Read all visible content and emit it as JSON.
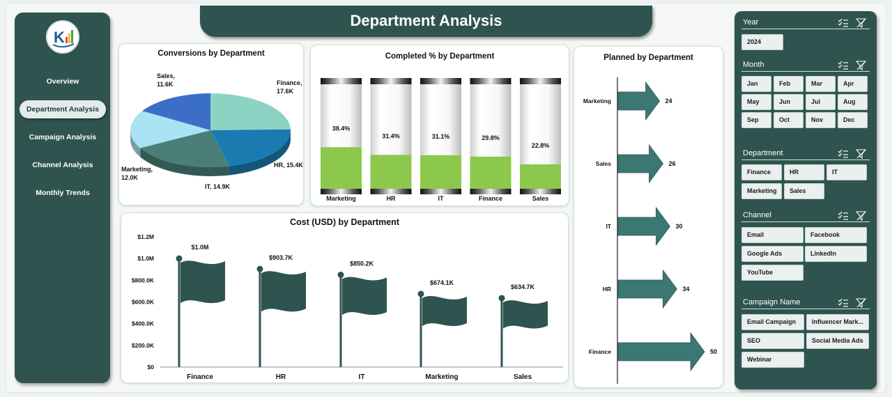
{
  "header": {
    "title": "Department Analysis"
  },
  "sidebar": {
    "items": [
      {
        "label": "Overview",
        "active": false
      },
      {
        "label": "Department Analysis",
        "active": true
      },
      {
        "label": "Campaign Analysis",
        "active": false
      },
      {
        "label": "Channel Analysis",
        "active": false
      },
      {
        "label": "Monthly Trends",
        "active": false
      }
    ]
  },
  "colors": {
    "panel": "#2f5450",
    "accent_green": "#8cc84b",
    "pie_blue": "#1979b4",
    "flag": "#2f5450",
    "arrow": "#3d7773"
  },
  "slicers": {
    "year": {
      "label": "Year",
      "options": [
        "2024"
      ]
    },
    "month": {
      "label": "Month",
      "options": [
        "Jan",
        "Feb",
        "Mar",
        "Apr",
        "May",
        "Jun",
        "Jul",
        "Aug",
        "Sep",
        "Oct",
        "Nov",
        "Dec"
      ]
    },
    "department": {
      "label": "Department",
      "options": [
        "Finance",
        "HR",
        "IT",
        "Marketing",
        "Sales"
      ]
    },
    "channel": {
      "label": "Channel",
      "options": [
        "Email",
        "Facebook",
        "Google Ads",
        "LinkedIn",
        "YouTube"
      ]
    },
    "campaign": {
      "label": "Campaign Name",
      "options": [
        "Email Campaign",
        "Influencer Mark...",
        "SEO",
        "Social Media Ads",
        "Webinar"
      ]
    },
    "icons": [
      "multi-select-icon",
      "clear-filter-icon"
    ]
  },
  "chart_data": [
    {
      "type": "pie",
      "title": "Conversions by Department",
      "categories": [
        "Finance",
        "HR",
        "IT",
        "Marketing",
        "Sales"
      ],
      "values": [
        17.6,
        15.4,
        14.9,
        12.0,
        11.6
      ],
      "labels": [
        "Finance,\n17.6K",
        "HR, 15.4K",
        "IT, 14.9K",
        "Marketing,\n12.0K",
        "Sales,\n11.6K"
      ],
      "colors": [
        "#8dd3c4",
        "#1a7bb0",
        "#4a7f79",
        "#a9e3f3",
        "#3b6fc7"
      ]
    },
    {
      "type": "bar",
      "title": "Completed % by Department",
      "categories": [
        "Marketing",
        "HR",
        "IT",
        "Finance",
        "Sales"
      ],
      "values": [
        38.4,
        31.4,
        31.1,
        29.8,
        22.8
      ],
      "labels": [
        "38.4%",
        "31.4%",
        "31.1%",
        "29.8%",
        "22.8%"
      ],
      "ylim": [
        0,
        100
      ]
    },
    {
      "type": "bar",
      "title": "Planned by Department",
      "orientation": "horizontal",
      "categories": [
        "Marketing",
        "Sales",
        "IT",
        "HR",
        "Finance"
      ],
      "values": [
        24,
        26,
        30,
        34,
        50
      ]
    },
    {
      "type": "bar",
      "title": "Cost (USD) by Department",
      "categories": [
        "Finance",
        "HR",
        "IT",
        "Marketing",
        "Sales"
      ],
      "values": [
        1000000,
        903700,
        850200,
        674100,
        634700
      ],
      "labels": [
        "$1.0M",
        "$903.7K",
        "$850.2K",
        "$674.1K",
        "$634.7K"
      ],
      "ylim": [
        0,
        1200000
      ],
      "yticks": [
        "$0",
        "$200.0K",
        "$400.0K",
        "$600.0K",
        "$800.0K",
        "$1.0M",
        "$1.2M"
      ]
    }
  ]
}
